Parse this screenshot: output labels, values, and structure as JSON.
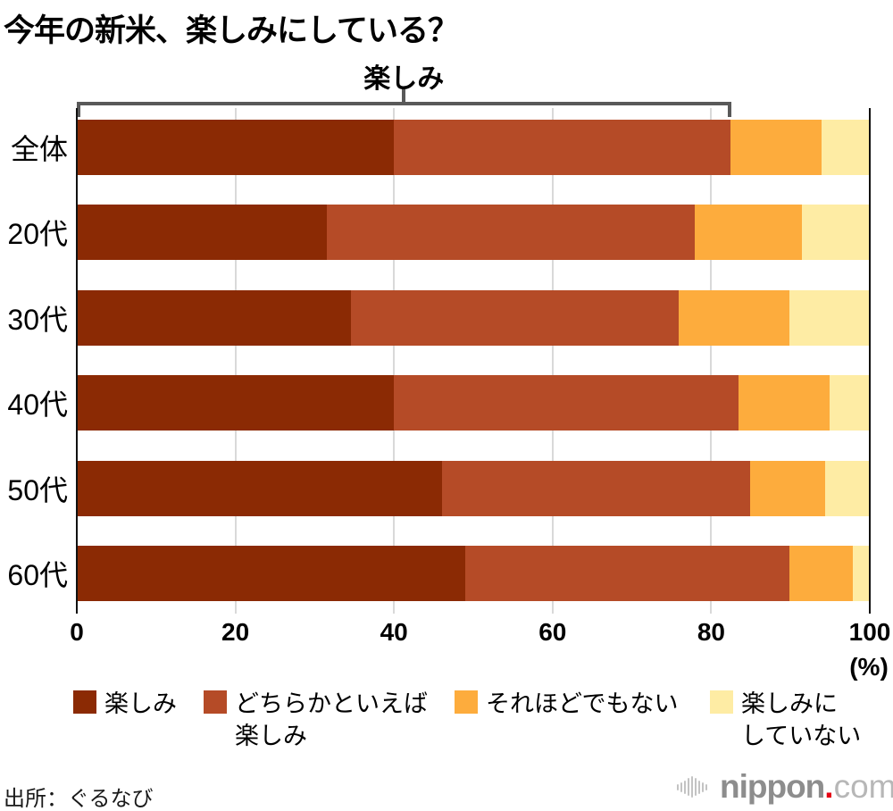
{
  "title": "今年の新米、楽しみにしている？",
  "chart_data": {
    "type": "bar",
    "stacked": true,
    "orientation": "horizontal",
    "title": "今年の新米、楽しみにしている？",
    "categories": [
      "全体",
      "20代",
      "30代",
      "40代",
      "50代",
      "60代"
    ],
    "series": [
      {
        "name": "楽しみ",
        "color": "#8b2a04",
        "values": [
          40,
          31.5,
          34.5,
          40,
          46,
          49
        ]
      },
      {
        "name": "どちらかといえば楽しみ",
        "color": "#b54b27",
        "values": [
          42.5,
          46.5,
          41.5,
          43.5,
          39,
          41
        ]
      },
      {
        "name": "それほどでもない",
        "color": "#fdac3d",
        "values": [
          11.5,
          13.5,
          14,
          11.5,
          9.5,
          8
        ]
      },
      {
        "name": "楽しみにしていない",
        "color": "#feeca4",
        "values": [
          6,
          8.5,
          10,
          5,
          5.5,
          2
        ]
      }
    ],
    "xlim": [
      0,
      100
    ],
    "x_ticks": [
      0,
      20,
      40,
      60,
      80,
      100
    ],
    "unit_label": "(%)",
    "grid": true,
    "legend_position": "bottom",
    "annotation": {
      "label": "楽しみ",
      "span_from": 0,
      "span_to": 82.5,
      "note": "bracket over first two series of 全体 row"
    }
  },
  "legend": [
    {
      "lines": [
        "楽しみ"
      ]
    },
    {
      "lines": [
        "どちらかといえば",
        "楽しみ"
      ]
    },
    {
      "lines": [
        "それほどでもない"
      ]
    },
    {
      "lines": [
        "楽しみに",
        "していない"
      ]
    }
  ],
  "footer": {
    "source": "出所：ぐるなび",
    "logo": {
      "name": "nippon",
      "dot": ".",
      "tld": "com",
      "dot_color": "#e60012"
    }
  }
}
